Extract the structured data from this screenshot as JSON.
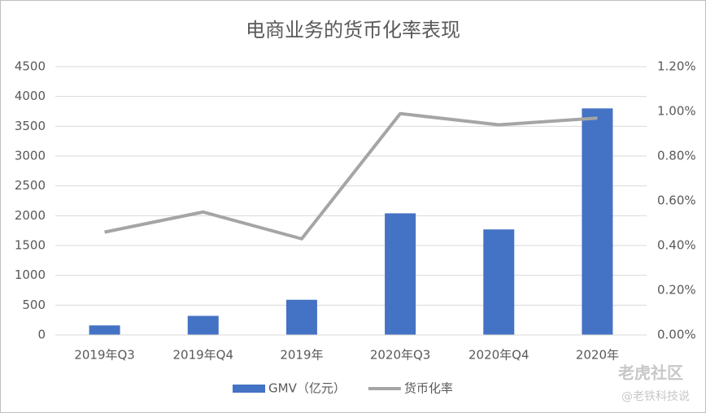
{
  "chart_data": {
    "type": "bar",
    "title": "电商业务的货币化率表现",
    "categories": [
      "2019年Q3",
      "2019年Q4",
      "2019年",
      "2020年Q3",
      "2020年Q4",
      "2020年"
    ],
    "series": [
      {
        "name": "GMV（亿元）",
        "type": "bar",
        "color": "#4472c4",
        "values": [
          160,
          320,
          590,
          2040,
          1770,
          3800
        ]
      },
      {
        "name": "货币化率",
        "type": "line",
        "axis": "y2",
        "color": "#a5a5a5",
        "values": [
          0.46,
          0.55,
          0.43,
          0.99,
          0.94,
          0.97
        ]
      }
    ],
    "ylim": [
      0,
      4500
    ],
    "yticks": [
      0,
      500,
      1000,
      1500,
      2000,
      2500,
      3000,
      3500,
      4000,
      4500
    ],
    "y2lim": [
      0,
      1.2
    ],
    "y2ticks": [
      {
        "value": 0,
        "label": "0.00%"
      },
      {
        "value": 0.2,
        "label": "0.20%"
      },
      {
        "value": 0.4,
        "label": "0.40%"
      },
      {
        "value": 0.6,
        "label": "0.60%"
      },
      {
        "value": 0.8,
        "label": "0.80%"
      },
      {
        "value": 1.0,
        "label": "1.00%"
      },
      {
        "value": 1.2,
        "label": "1.20%"
      }
    ],
    "grid": true,
    "legend": "bottom"
  },
  "watermark": [
    "老虎社区",
    "@老铁科技说"
  ]
}
